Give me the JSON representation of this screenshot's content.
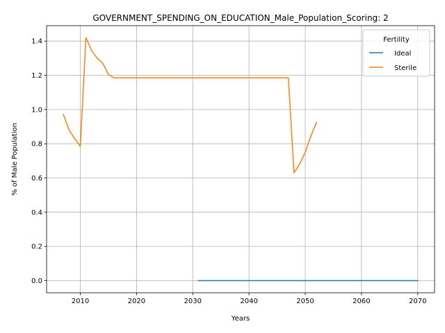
{
  "chart_data": {
    "type": "line",
    "title": "GOVERNMENT_SPENDING_ON_EDUCATION_Male_Population_Scoring: 2",
    "xlabel": "Years",
    "ylabel": "% of Male Population",
    "xlim": [
      2004,
      2073
    ],
    "ylim": [
      -0.071,
      1.49
    ],
    "xticks": [
      2010,
      2020,
      2030,
      2040,
      2050,
      2060,
      2070
    ],
    "xtick_labels": [
      "2010",
      "2020",
      "2030",
      "2040",
      "2050",
      "2060",
      "2070"
    ],
    "yticks": [
      0.0,
      0.2,
      0.4,
      0.6,
      0.8,
      1.0,
      1.2,
      1.4
    ],
    "ytick_labels": [
      "0.0",
      "0.2",
      "0.4",
      "0.6",
      "0.8",
      "1.0",
      "1.2",
      "1.4"
    ],
    "grid": true,
    "legend": {
      "title": "Fertility",
      "position": "upper right"
    },
    "series": [
      {
        "name": "Ideal",
        "color": "#1f77b4",
        "x": [
          2031,
          2040,
          2050,
          2060,
          2070
        ],
        "y": [
          0.0,
          0.0,
          0.0,
          0.0,
          0.0
        ]
      },
      {
        "name": "Sterile",
        "color": "#ff7f0e",
        "x": [
          2007,
          2008,
          2009,
          2010,
          2011,
          2012,
          2013,
          2014,
          2015,
          2016,
          2017,
          2020,
          2025,
          2030,
          2035,
          2040,
          2045,
          2047,
          2048,
          2049,
          2050,
          2051,
          2052
        ],
        "y": [
          0.97,
          0.88,
          0.83,
          0.785,
          1.42,
          1.345,
          1.3,
          1.27,
          1.205,
          1.185,
          1.185,
          1.185,
          1.185,
          1.185,
          1.185,
          1.185,
          1.185,
          1.185,
          0.63,
          0.68,
          0.75,
          0.845,
          0.925
        ]
      }
    ]
  }
}
